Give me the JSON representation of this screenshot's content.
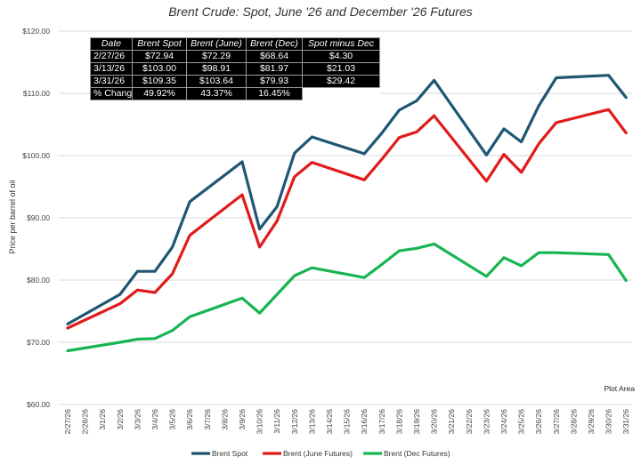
{
  "chart_data": {
    "type": "line",
    "title": "Brent Crude: Spot, June '26 and December '26 Futures",
    "ylabel": "Price per barrel of oil",
    "xlabel": "",
    "ylim": [
      60,
      120
    ],
    "y_ticks": [
      "$60.00",
      "$70.00",
      "$80.00",
      "$90.00",
      "$100.00",
      "$110.00",
      "$120.00"
    ],
    "y_tick_values": [
      60,
      70,
      80,
      90,
      100,
      110,
      120
    ],
    "grid": "horizontal",
    "legend_position": "bottom",
    "categories": [
      "2/27/26",
      "2/28/26",
      "3/1/26",
      "3/2/26",
      "3/3/26",
      "3/4/26",
      "3/5/26",
      "3/6/26",
      "3/7/26",
      "3/8/26",
      "3/9/26",
      "3/10/26",
      "3/11/26",
      "3/12/26",
      "3/13/26",
      "3/14/26",
      "3/15/26",
      "3/16/26",
      "3/17/26",
      "3/18/26",
      "3/19/26",
      "3/20/26",
      "3/21/26",
      "3/22/26",
      "3/23/26",
      "3/24/26",
      "3/25/26",
      "3/26/26",
      "3/27/26",
      "3/28/26",
      "3/29/26",
      "3/30/26",
      "3/31/26"
    ],
    "series": [
      {
        "name": "Brent Spot",
        "color": "#1f5673",
        "points": [
          {
            "x": "2/27/26",
            "y": 72.94
          },
          {
            "x": "3/2/26",
            "y": 77.7
          },
          {
            "x": "3/3/26",
            "y": 81.4
          },
          {
            "x": "3/4/26",
            "y": 81.4
          },
          {
            "x": "3/5/26",
            "y": 85.3
          },
          {
            "x": "3/6/26",
            "y": 92.6
          },
          {
            "x": "3/9/26",
            "y": 99.0
          },
          {
            "x": "3/10/26",
            "y": 88.2
          },
          {
            "x": "3/11/26",
            "y": 91.8
          },
          {
            "x": "3/12/26",
            "y": 100.4
          },
          {
            "x": "3/13/26",
            "y": 103.0
          },
          {
            "x": "3/16/26",
            "y": 100.3
          },
          {
            "x": "3/17/26",
            "y": 103.6
          },
          {
            "x": "3/18/26",
            "y": 107.3
          },
          {
            "x": "3/19/26",
            "y": 108.8
          },
          {
            "x": "3/20/26",
            "y": 112.1
          },
          {
            "x": "3/23/26",
            "y": 100.1
          },
          {
            "x": "3/24/26",
            "y": 104.3
          },
          {
            "x": "3/25/26",
            "y": 102.2
          },
          {
            "x": "3/26/26",
            "y": 108.0
          },
          {
            "x": "3/27/26",
            "y": 112.5
          },
          {
            "x": "3/30/26",
            "y": 112.9
          },
          {
            "x": "3/31/26",
            "y": 109.35
          }
        ]
      },
      {
        "name": "Brent (June Futures)",
        "color": "#e11b1b",
        "points": [
          {
            "x": "2/27/26",
            "y": 72.29
          },
          {
            "x": "3/2/26",
            "y": 76.2
          },
          {
            "x": "3/3/26",
            "y": 78.4
          },
          {
            "x": "3/4/26",
            "y": 78.0
          },
          {
            "x": "3/5/26",
            "y": 81.0
          },
          {
            "x": "3/6/26",
            "y": 87.2
          },
          {
            "x": "3/9/26",
            "y": 93.7
          },
          {
            "x": "3/10/26",
            "y": 85.3
          },
          {
            "x": "3/11/26",
            "y": 89.5
          },
          {
            "x": "3/12/26",
            "y": 96.6
          },
          {
            "x": "3/13/26",
            "y": 98.91
          },
          {
            "x": "3/16/26",
            "y": 96.1
          },
          {
            "x": "3/17/26",
            "y": 99.4
          },
          {
            "x": "3/18/26",
            "y": 102.9
          },
          {
            "x": "3/19/26",
            "y": 103.8
          },
          {
            "x": "3/20/26",
            "y": 106.4
          },
          {
            "x": "3/23/26",
            "y": 95.9
          },
          {
            "x": "3/24/26",
            "y": 100.2
          },
          {
            "x": "3/25/26",
            "y": 97.3
          },
          {
            "x": "3/26/26",
            "y": 101.9
          },
          {
            "x": "3/27/26",
            "y": 105.3
          },
          {
            "x": "3/30/26",
            "y": 107.4
          },
          {
            "x": "3/31/26",
            "y": 103.64
          }
        ]
      },
      {
        "name": "Brent (Dec Futures)",
        "color": "#16b552",
        "points": [
          {
            "x": "2/27/26",
            "y": 68.64
          },
          {
            "x": "3/2/26",
            "y": 70.0
          },
          {
            "x": "3/3/26",
            "y": 70.5
          },
          {
            "x": "3/4/26",
            "y": 70.6
          },
          {
            "x": "3/5/26",
            "y": 71.9
          },
          {
            "x": "3/6/26",
            "y": 74.1
          },
          {
            "x": "3/9/26",
            "y": 77.1
          },
          {
            "x": "3/10/26",
            "y": 74.7
          },
          {
            "x": "3/11/26",
            "y": 77.7
          },
          {
            "x": "3/12/26",
            "y": 80.7
          },
          {
            "x": "3/13/26",
            "y": 81.97
          },
          {
            "x": "3/16/26",
            "y": 80.4
          },
          {
            "x": "3/17/26",
            "y": 82.5
          },
          {
            "x": "3/18/26",
            "y": 84.7
          },
          {
            "x": "3/19/26",
            "y": 85.1
          },
          {
            "x": "3/20/26",
            "y": 85.8
          },
          {
            "x": "3/23/26",
            "y": 80.6
          },
          {
            "x": "3/24/26",
            "y": 83.6
          },
          {
            "x": "3/25/26",
            "y": 82.3
          },
          {
            "x": "3/26/26",
            "y": 84.4
          },
          {
            "x": "3/27/26",
            "y": 84.4
          },
          {
            "x": "3/30/26",
            "y": 84.1
          },
          {
            "x": "3/31/26",
            "y": 79.93
          }
        ]
      }
    ],
    "annotations": [
      "Plot Area"
    ],
    "table": {
      "headers": [
        "Date",
        "Brent Spot",
        "Brent (June)",
        "Brent (Dec)",
        "Spot minus Dec"
      ],
      "rows": [
        [
          "2/27/26",
          "$72.94",
          "$72.29",
          "$68.64",
          "$4.30"
        ],
        [
          "3/13/26",
          "$103.00",
          "$98.91",
          "$81.97",
          "$21.03"
        ],
        [
          "3/31/26",
          "$109.35",
          "$103.64",
          "$79.93",
          "$29.42"
        ],
        [
          "% Change",
          "49.92%",
          "43.37%",
          "16.45%",
          ""
        ]
      ]
    }
  }
}
